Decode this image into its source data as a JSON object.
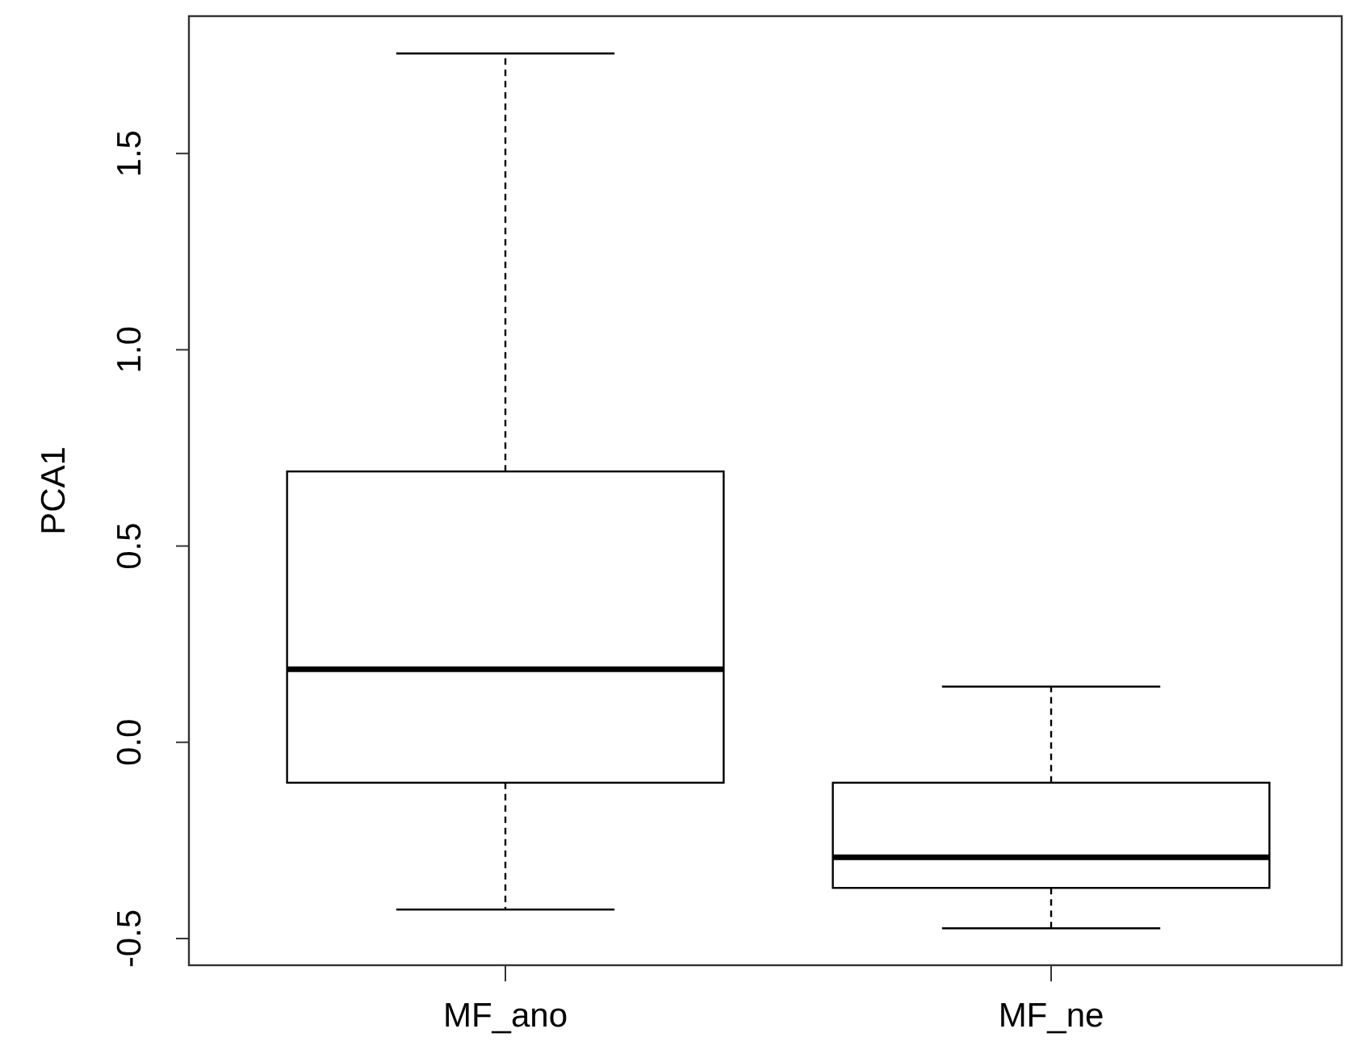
{
  "chart_data": {
    "type": "box",
    "ylabel": "PCA1",
    "categories": [
      "MF_ano",
      "MF_ne"
    ],
    "boxes": [
      {
        "low": -0.426,
        "q1": -0.103,
        "median": 0.186,
        "q3": 0.69,
        "high": 1.755
      },
      {
        "low": -0.474,
        "q1": -0.371,
        "median": -0.293,
        "q3": -0.103,
        "high": 0.142
      }
    ],
    "ylim": [
      -0.568,
      1.85
    ],
    "yticks": [
      {
        "value": -0.5,
        "label": "-0.5"
      },
      {
        "value": 0,
        "label": "0.0"
      },
      {
        "value": 0.5,
        "label": "0.5"
      },
      {
        "value": 1,
        "label": "1.0"
      },
      {
        "value": 1.5,
        "label": "1.5"
      }
    ],
    "grid": false
  }
}
